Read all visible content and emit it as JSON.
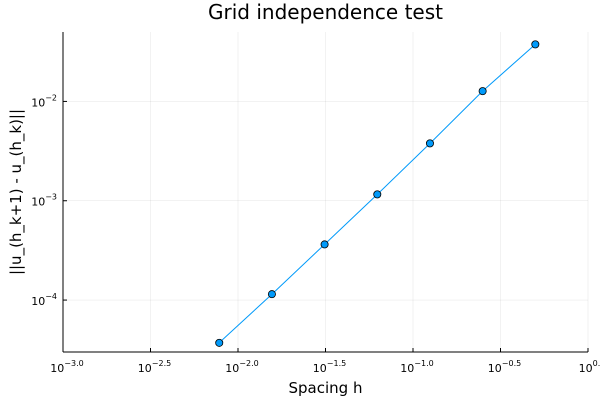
{
  "chart_data": {
    "type": "scatter",
    "title": "Grid independence test",
    "xlabel": "Spacing h",
    "ylabel": "||u_(h_k+1) - u_(h_k)||",
    "x_scale": "log10",
    "y_scale": "log10",
    "xlim": [
      0.001,
      1.0
    ],
    "ylim": [
      3e-05,
      0.05
    ],
    "grid": true,
    "legend": "none",
    "x_ticks": [
      {
        "base": "10",
        "exp": "−3.0",
        "value": 0.001
      },
      {
        "base": "10",
        "exp": "−2.5",
        "value": 0.0031623
      },
      {
        "base": "10",
        "exp": "−2.0",
        "value": 0.01
      },
      {
        "base": "10",
        "exp": "−1.5",
        "value": 0.031623
      },
      {
        "base": "10",
        "exp": "−1.0",
        "value": 0.1
      },
      {
        "base": "10",
        "exp": "−0.5",
        "value": 0.31623
      },
      {
        "base": "10",
        "exp": "0.0",
        "value": 1.0
      }
    ],
    "y_ticks": [
      {
        "base": "10",
        "exp": "−4",
        "value": 0.0001
      },
      {
        "base": "10",
        "exp": "−3",
        "value": 0.001
      },
      {
        "base": "10",
        "exp": "−2",
        "value": 0.01
      }
    ],
    "series": [
      {
        "color": "#009AFA",
        "line": true,
        "markers": true,
        "x": [
          0.0078125,
          0.015625,
          0.03125,
          0.0625,
          0.125,
          0.25,
          0.5
        ],
        "y": [
          3.71e-05,
          0.0001147,
          0.0003634,
          0.0011591,
          0.0037807,
          0.0126996,
          0.0375391
        ]
      }
    ]
  }
}
